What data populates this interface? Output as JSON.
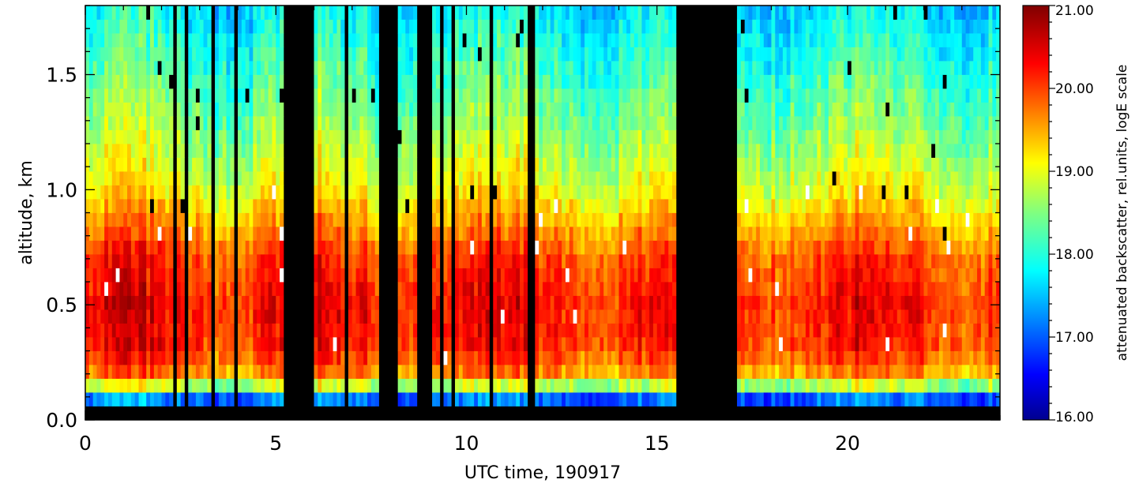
{
  "chart_data": {
    "type": "heatmap",
    "title": "",
    "xlabel": "UTC time, 190917",
    "ylabel": "altitude, km",
    "xlim": [
      0,
      24
    ],
    "ylim": [
      0,
      1.8
    ],
    "x_ticks": [
      0,
      5,
      10,
      15,
      20
    ],
    "x_tick_labels": [
      "0",
      "5",
      "10",
      "15",
      "20"
    ],
    "y_ticks": [
      0.0,
      0.5,
      1.0,
      1.5
    ],
    "y_tick_labels": [
      "0.0",
      "0.5",
      "1.0",
      "1.5"
    ],
    "colorbar": {
      "label": "attenuated backscatter, rel.units, logE scale",
      "range": [
        16.0,
        21.0
      ],
      "ticks": [
        16.0,
        17.0,
        18.0,
        19.0,
        20.0,
        21.0
      ],
      "tick_labels": [
        "16.00",
        "17.00",
        "18.00",
        "19.00",
        "20.00",
        "21.00"
      ],
      "colormap": "jet"
    },
    "missing_color": "#000000",
    "saturated_color": "#ffffff",
    "no_data_intervals_h": [
      [
        2.3,
        2.38
      ],
      [
        2.6,
        2.68
      ],
      [
        3.3,
        3.4
      ],
      [
        3.95,
        4.05
      ],
      [
        5.2,
        5.95
      ],
      [
        6.82,
        6.86
      ],
      [
        7.72,
        8.2
      ],
      [
        8.7,
        9.05
      ],
      [
        9.34,
        9.38
      ],
      [
        9.62,
        9.66
      ],
      [
        9.88,
        9.94
      ],
      [
        10.1,
        10.14
      ],
      [
        10.3,
        10.34
      ],
      [
        10.62,
        10.7
      ],
      [
        11.6,
        11.8
      ],
      [
        15.5,
        17.05
      ]
    ],
    "ground_mask_km": 0.06,
    "profile_shape": {
      "height_km": [
        0.06,
        0.09,
        0.12,
        0.15,
        0.2,
        0.3,
        0.5,
        0.7,
        0.85,
        1.0,
        1.2,
        1.4,
        1.6,
        1.8
      ],
      "backscatter_loge": [
        16.1,
        17.2,
        17.8,
        18.8,
        19.7,
        20.2,
        20.35,
        20.1,
        19.6,
        19.1,
        18.7,
        18.4,
        18.1,
        17.8
      ]
    }
  }
}
